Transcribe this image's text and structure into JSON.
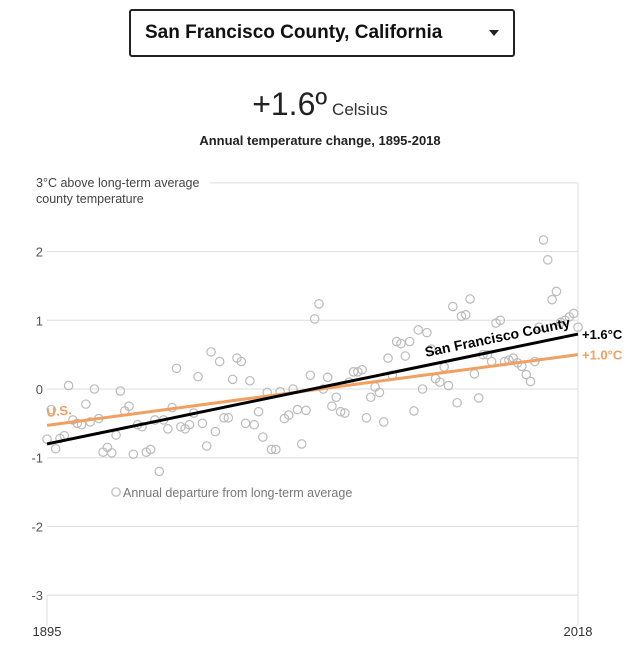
{
  "selector": {
    "value": "San Francisco County, California",
    "icon": "chevron-down-icon"
  },
  "headline": {
    "value": "+1.6º",
    "unit": "Celsius"
  },
  "subtitle": "Annual temperature change, 1895-2018",
  "chart_data": {
    "type": "scatter",
    "title": "Annual temperature change, 1895-2018",
    "ylabel_lines": [
      "3°C above long-term average",
      "county temperature"
    ],
    "ylim": [
      -3.3,
      3
    ],
    "xlim": [
      1895,
      2018
    ],
    "y_ticks": [
      -3,
      -2,
      -1,
      0,
      1,
      2
    ],
    "y_tick_labels": [
      "-3",
      "-2",
      "-1",
      "0",
      "1",
      "2"
    ],
    "x_tick_labels": [
      "1895",
      "2018"
    ],
    "legend_label": "Annual departure from long-term average",
    "series": [
      {
        "name": "Annual departure from long-term average",
        "type": "scatter",
        "color": "#bbbbbb",
        "x": [
          1895,
          1896,
          1897,
          1898,
          1899,
          1900,
          1901,
          1902,
          1903,
          1904,
          1905,
          1906,
          1907,
          1908,
          1909,
          1910,
          1911,
          1912,
          1913,
          1914,
          1915,
          1916,
          1917,
          1918,
          1919,
          1920,
          1921,
          1922,
          1923,
          1924,
          1925,
          1926,
          1927,
          1928,
          1929,
          1930,
          1931,
          1932,
          1933,
          1934,
          1935,
          1936,
          1937,
          1938,
          1939,
          1940,
          1941,
          1942,
          1943,
          1944,
          1945,
          1946,
          1947,
          1948,
          1949,
          1950,
          1951,
          1952,
          1953,
          1954,
          1955,
          1956,
          1957,
          1958,
          1959,
          1960,
          1961,
          1962,
          1963,
          1964,
          1965,
          1966,
          1967,
          1968,
          1969,
          1970,
          1971,
          1972,
          1973,
          1974,
          1975,
          1976,
          1977,
          1978,
          1979,
          1980,
          1981,
          1982,
          1983,
          1984,
          1985,
          1986,
          1987,
          1988,
          1989,
          1990,
          1991,
          1992,
          1993,
          1994,
          1995,
          1996,
          1997,
          1998,
          1999,
          2000,
          2001,
          2002,
          2003,
          2004,
          2005,
          2006,
          2007,
          2008,
          2009,
          2010,
          2011,
          2012,
          2013,
          2014,
          2015,
          2016,
          2017,
          2018
        ],
        "values": [
          -0.73,
          -0.3,
          -0.87,
          -0.72,
          -0.68,
          0.05,
          -0.45,
          -0.5,
          -0.52,
          -0.22,
          -0.48,
          0.0,
          -0.43,
          -0.92,
          -0.85,
          -0.93,
          -0.67,
          -0.03,
          -0.32,
          -0.25,
          -0.95,
          -0.52,
          -0.55,
          -0.92,
          -0.88,
          -0.45,
          -1.2,
          -0.45,
          -0.58,
          -0.27,
          0.3,
          -0.55,
          -0.58,
          -0.52,
          -0.35,
          0.18,
          -0.5,
          -0.83,
          0.54,
          -0.62,
          0.4,
          -0.42,
          -0.42,
          0.14,
          0.45,
          0.4,
          -0.5,
          0.12,
          -0.52,
          -0.33,
          -0.7,
          -0.05,
          -0.88,
          -0.88,
          -0.04,
          -0.43,
          -0.38,
          0.0,
          -0.3,
          -0.8,
          -0.31,
          0.2,
          1.02,
          1.24,
          0.0,
          0.17,
          -0.25,
          -0.12,
          -0.33,
          -0.35,
          0.1,
          0.25,
          0.25,
          0.28,
          -0.42,
          -0.12,
          0.03,
          -0.05,
          -0.48,
          0.45,
          0.2,
          0.69,
          0.66,
          0.48,
          0.69,
          -0.32,
          0.86,
          0.0,
          0.82,
          0.58,
          0.15,
          0.1,
          0.32,
          0.05,
          1.2,
          -0.2,
          1.06,
          1.08,
          1.31,
          0.22,
          -0.13,
          0.5,
          0.5,
          0.4,
          0.96,
          1.0,
          0.4,
          0.42,
          0.45,
          0.38,
          0.33,
          0.21,
          0.11,
          0.4,
          0.9,
          2.17,
          1.88,
          1.3,
          1.42,
          0.97,
          1.0,
          1.05,
          1.1,
          0.9
        ],
        "note": "individual annual points approximated from plot"
      },
      {
        "name": "San Francisco County",
        "type": "trend_line",
        "color": "#000000",
        "x": [
          1895,
          2018
        ],
        "values": [
          -0.8,
          0.8
        ],
        "end_label": "+1.6°C"
      },
      {
        "name": "U.S.",
        "type": "trend_line",
        "color": "#f0a060",
        "x": [
          1895,
          2018
        ],
        "values": [
          -0.53,
          0.5
        ],
        "end_label": "+1.0°C"
      }
    ]
  }
}
